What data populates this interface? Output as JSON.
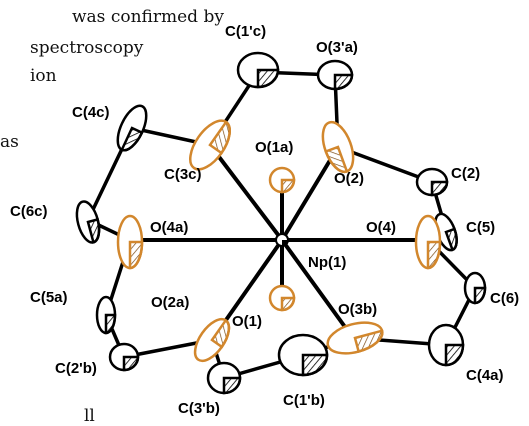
{
  "background_text": {
    "line1": "was confirmed by",
    "line2": "spectroscopy",
    "line3": "ion",
    "line4": "as",
    "line5": "ll"
  },
  "colors": {
    "oxygen": "#d2872d",
    "carbon": "#111111",
    "bond": "#000000"
  },
  "atom_labels": {
    "np1": "Np(1)",
    "o1a": "O(1a)",
    "o1": "O(1)",
    "o2": "O(2)",
    "o2a": "O(2a)",
    "o3a_prime": "O(3'a)",
    "o3b": "O(3b)",
    "o4": "O(4)",
    "o4a": "O(4a)",
    "c1c": "C(1'c)",
    "c1b": "C(1'b)",
    "c2": "C(2)",
    "c2b": "C(2'b)",
    "c3c": "C(3c)",
    "c3b": "C(3'b)",
    "c4c": "C(4c)",
    "c4a": "C(4a)",
    "c5": "C(5)",
    "c5a": "C(5a)",
    "c6": "C(6)",
    "c6c": "C(6c)"
  }
}
